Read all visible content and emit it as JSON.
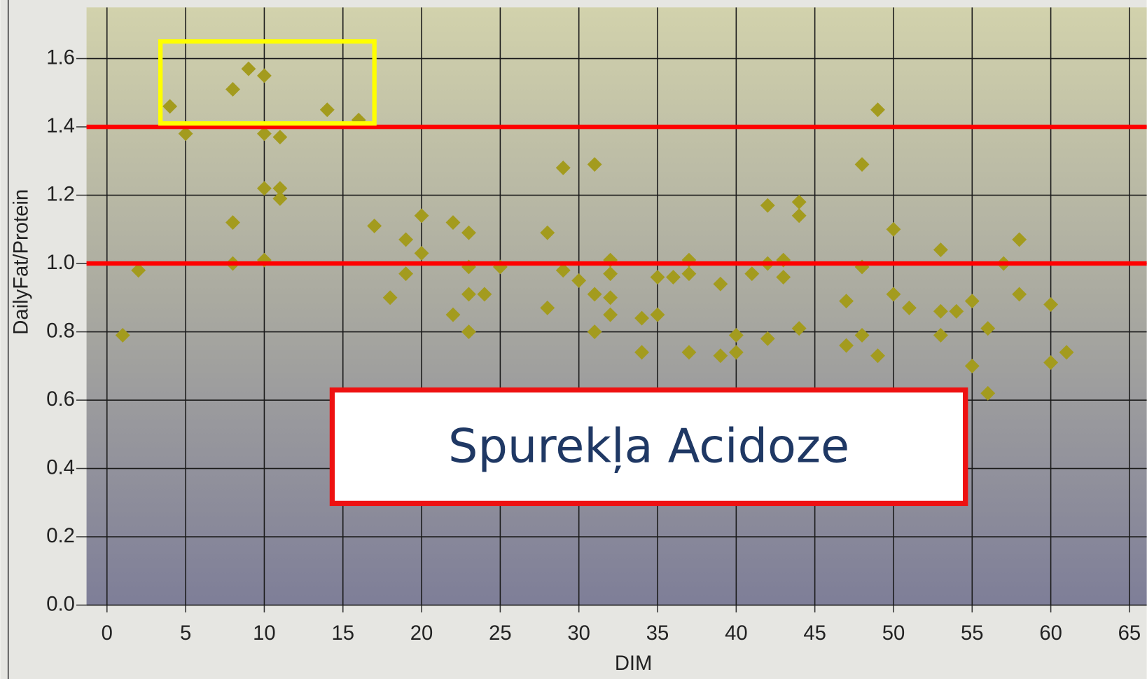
{
  "chart_data": {
    "type": "scatter",
    "xlabel": "DIM",
    "ylabel": "DailyFat/Protein",
    "annotation": "Spurekļa Acidoze",
    "color": "#a39b1e",
    "x": [
      1,
      2,
      4,
      5,
      8,
      8,
      8,
      9,
      10,
      10,
      10,
      10,
      11,
      11,
      11,
      14,
      16,
      17,
      18,
      19,
      19,
      20,
      20,
      22,
      22,
      23,
      23,
      23,
      23,
      24,
      25,
      28,
      28,
      29,
      29,
      30,
      31,
      31,
      31,
      32,
      32,
      32,
      32,
      34,
      34,
      35,
      35,
      36,
      37,
      37,
      37,
      39,
      39,
      40,
      40,
      41,
      42,
      42,
      42,
      43,
      43,
      44,
      44,
      44,
      47,
      47,
      48,
      48,
      48,
      49,
      49,
      50,
      50,
      51,
      53,
      53,
      53,
      54,
      55,
      55,
      56,
      56,
      57,
      58,
      58,
      60,
      60,
      61
    ],
    "y": [
      0.79,
      0.98,
      1.46,
      1.38,
      1.51,
      1.12,
      1.0,
      1.57,
      1.55,
      1.38,
      1.22,
      1.01,
      1.37,
      1.22,
      1.19,
      1.45,
      1.42,
      1.11,
      0.9,
      1.07,
      0.97,
      1.14,
      1.03,
      1.12,
      0.85,
      1.09,
      0.99,
      0.91,
      0.8,
      0.91,
      0.99,
      1.09,
      0.87,
      1.28,
      0.98,
      0.95,
      1.29,
      0.91,
      0.8,
      1.01,
      0.97,
      0.9,
      0.85,
      0.84,
      0.74,
      0.96,
      0.85,
      0.96,
      1.01,
      0.97,
      0.74,
      0.94,
      0.73,
      0.79,
      0.74,
      0.97,
      1.17,
      1.0,
      0.78,
      1.01,
      0.96,
      1.18,
      1.14,
      0.81,
      0.89,
      0.76,
      1.29,
      0.99,
      0.79,
      1.45,
      0.73,
      1.1,
      0.91,
      0.87,
      1.04,
      0.86,
      0.79,
      0.86,
      0.89,
      0.7,
      0.81,
      0.62,
      1.0,
      1.07,
      0.91,
      0.88,
      0.71,
      0.74
    ],
    "xlim": [
      -1.3,
      66.1
    ],
    "ylim": [
      0,
      1.75
    ],
    "xticks": [
      0,
      5,
      10,
      15,
      20,
      25,
      30,
      35,
      40,
      45,
      50,
      55,
      60,
      65
    ],
    "yticks": [
      {
        "value": 0,
        "label": "0.0"
      },
      0.2,
      0.4,
      0.6,
      0.8,
      {
        "value": 1,
        "label": "1.0"
      },
      1.2,
      1.4,
      1.6
    ],
    "grid": true,
    "reference_lines": [
      {
        "value": 1.4,
        "color": "#ff0000"
      },
      {
        "value": 1.0,
        "color": "#ff0000"
      }
    ],
    "highlight_box": {
      "x": [
        3.4,
        17
      ],
      "y": [
        1.41,
        1.65
      ],
      "color": "#ffff00"
    }
  }
}
